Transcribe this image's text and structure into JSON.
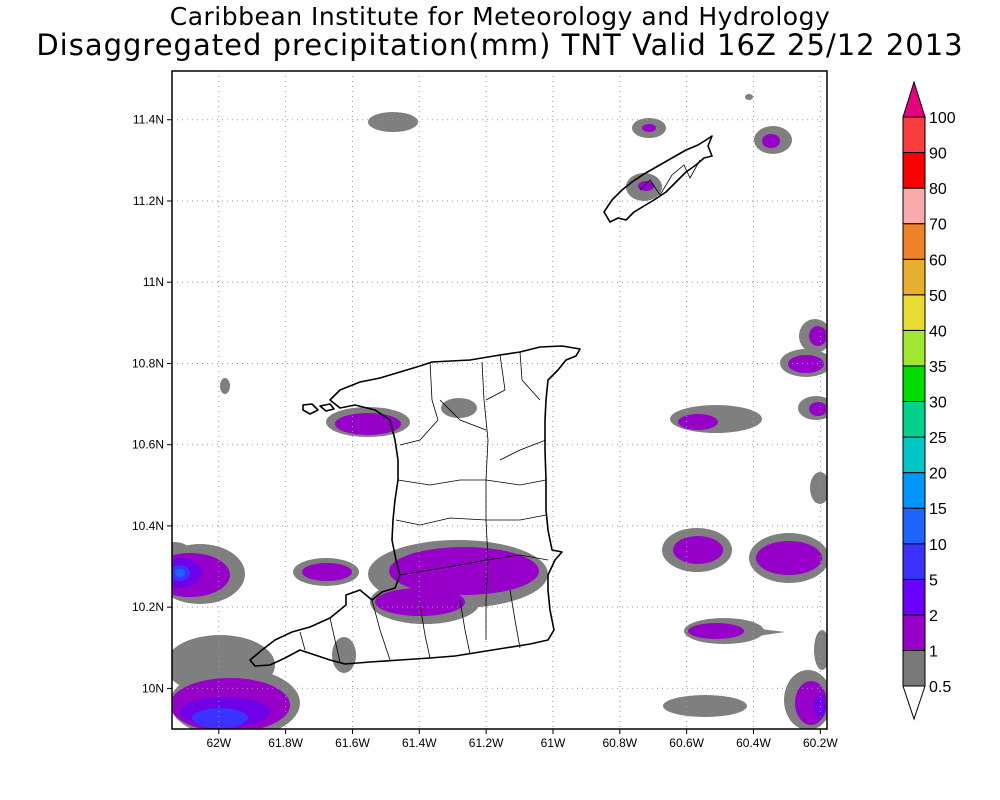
{
  "title_line1": "Caribbean Institute for Meteorology and Hydrology",
  "title_line2": "Disaggregated precipitation(mm) TNT Valid 16Z 25/12 2013",
  "map": {
    "x_ticks": [
      {
        "value": -62.0,
        "label": "62W"
      },
      {
        "value": -61.8,
        "label": "61.8W"
      },
      {
        "value": -61.6,
        "label": "61.6W"
      },
      {
        "value": -61.4,
        "label": "61.4W"
      },
      {
        "value": -61.2,
        "label": "61.2W"
      },
      {
        "value": -61.0,
        "label": "61W"
      },
      {
        "value": -60.8,
        "label": "60.8W"
      },
      {
        "value": -60.6,
        "label": "60.6W"
      },
      {
        "value": -60.4,
        "label": "60.4W"
      },
      {
        "value": -60.2,
        "label": "60.2W"
      }
    ],
    "y_ticks": [
      {
        "value": 10.0,
        "label": "10N"
      },
      {
        "value": 10.2,
        "label": "10.2N"
      },
      {
        "value": 10.4,
        "label": "10.4N"
      },
      {
        "value": 10.6,
        "label": "10.6N"
      },
      {
        "value": 10.8,
        "label": "10.8N"
      },
      {
        "value": 11.0,
        "label": "11N"
      },
      {
        "value": 11.2,
        "label": "11.2N"
      },
      {
        "value": 11.4,
        "label": "11.4N"
      }
    ],
    "lon_range": [
      -62.14,
      -60.18
    ],
    "lat_range": [
      9.9,
      11.52
    ],
    "grid": "dotted"
  },
  "colorbar": {
    "levels": [
      {
        "label": "0.5",
        "color": "#ffffff"
      },
      {
        "label": "1",
        "color": "#787878"
      },
      {
        "label": "2",
        "color": "#9600c8"
      },
      {
        "label": "5",
        "color": "#6a00ff"
      },
      {
        "label": "10",
        "color": "#3c32ff"
      },
      {
        "label": "15",
        "color": "#1e64ff"
      },
      {
        "label": "20",
        "color": "#0096ff"
      },
      {
        "label": "25",
        "color": "#00c8c8"
      },
      {
        "label": "30",
        "color": "#00d28c"
      },
      {
        "label": "35",
        "color": "#00dc00"
      },
      {
        "label": "40",
        "color": "#a0e632"
      },
      {
        "label": "50",
        "color": "#e6dc32"
      },
      {
        "label": "60",
        "color": "#e6af2d"
      },
      {
        "label": "70",
        "color": "#f08228"
      },
      {
        "label": "80",
        "color": "#faaaaa"
      },
      {
        "label": "90",
        "color": "#fa0000"
      },
      {
        "label": "100",
        "color": "#fa3c3c"
      }
    ],
    "top_arrow_color": "#e6007e"
  }
}
